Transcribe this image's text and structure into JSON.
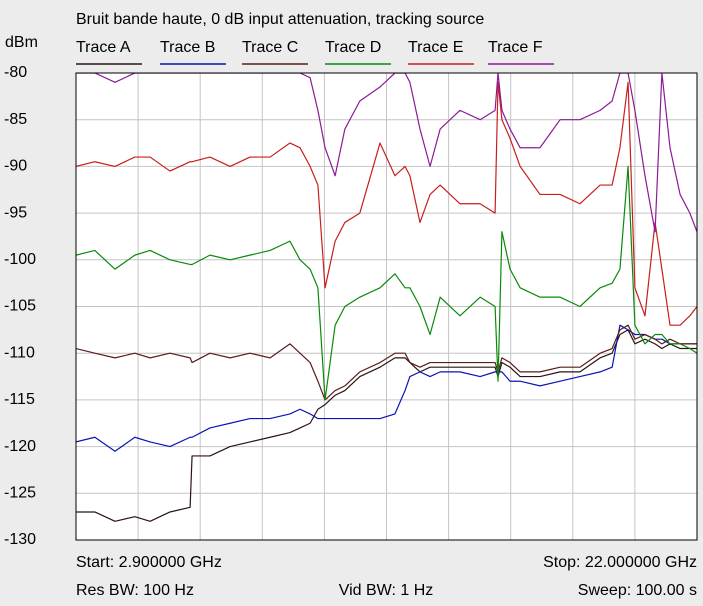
{
  "chart_data": {
    "type": "line",
    "title": "Bruit bande haute, 0 dB input attenuation, tracking source",
    "y_label": "dBm",
    "start_label": "Start: 2.900000 GHz",
    "stop_label": "Stop: 22.000000 GHz",
    "res_bw_label": "Res BW: 100 Hz",
    "vid_bw_label": "Vid BW: 1 Hz",
    "sweep_label": "Sweep: 100.00 s",
    "xlim": [
      2.9,
      22.0
    ],
    "xticks": [
      2.9,
      4.81,
      6.72,
      8.63,
      10.54,
      12.45,
      14.36,
      16.27,
      18.18,
      20.09,
      22.0
    ],
    "ylim": [
      -130,
      -80
    ],
    "yticks": [
      -80,
      -85,
      -90,
      -95,
      -100,
      -105,
      -110,
      -115,
      -120,
      -125,
      -130
    ],
    "grid": true,
    "x": [
      2.9,
      3.48,
      4.1,
      4.71,
      5.18,
      5.79,
      6.41,
      6.47,
      7.02,
      7.64,
      8.25,
      8.87,
      9.48,
      9.79,
      10.1,
      10.34,
      10.56,
      10.87,
      11.17,
      11.63,
      12.25,
      12.71,
      13.02,
      13.17,
      13.48,
      13.79,
      14.1,
      14.71,
      15.33,
      15.79,
      15.88,
      16.0,
      16.25,
      16.56,
      17.17,
      17.79,
      18.4,
      19.02,
      19.39,
      19.63,
      19.88,
      20.09,
      20.4,
      20.71,
      20.92,
      21.17,
      21.48,
      21.78,
      22.0
    ],
    "series": [
      {
        "name": "Trace A",
        "color": "#2a1414",
        "values": [
          -127,
          -127,
          -128,
          -127.5,
          -128,
          -127,
          -126.5,
          -121,
          -121,
          -120,
          -119.5,
          -119,
          -118.5,
          -118,
          -117.5,
          -116,
          -115.5,
          -114.5,
          -114,
          -112.5,
          -111.5,
          -110.5,
          -110.5,
          -111,
          -112,
          -111.5,
          -111.5,
          -111.5,
          -111.5,
          -111.5,
          -112.5,
          -111,
          -111.5,
          -112.5,
          -112.5,
          -112,
          -112,
          -110.5,
          -110,
          -108,
          -107.5,
          -109,
          -108.5,
          -109,
          -109.5,
          -109,
          -109.5,
          -109.5,
          -109.5
        ]
      },
      {
        "name": "Trace B",
        "color": "#0a14b4",
        "values": [
          -119.5,
          -119,
          -120.5,
          -119,
          -119.5,
          -120,
          -119,
          -119,
          -118,
          -117.5,
          -117,
          -117,
          -116.5,
          -116,
          -116.5,
          -117,
          -117,
          -117,
          -117,
          -117,
          -117,
          -116.5,
          -114,
          -112.5,
          -112,
          -112.5,
          -112,
          -112,
          -112.5,
          -112,
          -112,
          -112,
          -113,
          -113,
          -113.5,
          -113,
          -112.5,
          -112,
          -111.5,
          -107,
          -107.5,
          -108,
          -108,
          -108.5,
          -108.5,
          -109,
          -109,
          -109,
          -109
        ]
      },
      {
        "name": "Trace C",
        "color": "#5a1c1c",
        "values": [
          -109.5,
          -110,
          -110.5,
          -110,
          -110.5,
          -110,
          -110.5,
          -111,
          -110,
          -110.5,
          -110,
          -110.5,
          -109,
          -110,
          -111,
          -113,
          -115,
          -114,
          -113.5,
          -112,
          -111,
          -110,
          -110,
          -111,
          -111.5,
          -111,
          -111,
          -111,
          -111,
          -111,
          -112,
          -110.5,
          -111,
          -112,
          -112,
          -111.5,
          -111.5,
          -110,
          -109.5,
          -107.5,
          -107,
          -108.5,
          -108,
          -108.5,
          -109,
          -108.5,
          -109,
          -109,
          -109
        ]
      },
      {
        "name": "Trace D",
        "color": "#0a8a0a",
        "values": [
          -99.5,
          -99,
          -101,
          -99.5,
          -99,
          -100,
          -100.5,
          -100.5,
          -99.5,
          -100,
          -99.5,
          -99,
          -98,
          -100,
          -101,
          -103,
          -115,
          -107,
          -105,
          -104,
          -103,
          -101.5,
          -103,
          -103,
          -105,
          -108,
          -104,
          -106,
          -104,
          -105,
          -113,
          -97,
          -101,
          -103,
          -104,
          -104,
          -105,
          -103,
          -102.5,
          -101,
          -90,
          -107,
          -109,
          -108,
          -108,
          -109,
          -109,
          -109.5,
          -110
        ]
      },
      {
        "name": "Trace E",
        "color": "#c81e1e",
        "values": [
          -90,
          -89.5,
          -90,
          -89,
          -89,
          -90.5,
          -89.5,
          -89.5,
          -89,
          -90,
          -89,
          -89,
          -87.5,
          -88,
          -90,
          -92,
          -103,
          -98,
          -96,
          -95,
          -87.5,
          -91,
          -90,
          -91,
          -96,
          -93,
          -92,
          -94,
          -94,
          -95,
          -81,
          -85,
          -87,
          -90,
          -93,
          -93,
          -94,
          -92,
          -92,
          -88,
          -81,
          -103,
          -106,
          -96,
          -101,
          -107,
          -107,
          -106,
          -105
        ]
      },
      {
        "name": "Trace F",
        "color": "#8c1a96",
        "values": [
          -80,
          -80,
          -81,
          -80,
          -80,
          -80,
          -80,
          -80,
          -80,
          -80,
          -80,
          -80,
          -80,
          -80,
          -80.5,
          -84,
          -88,
          -91,
          -86,
          -83,
          -81.5,
          -80,
          -80,
          -81,
          -86,
          -90,
          -86,
          -84,
          -85,
          -84,
          -80,
          -84,
          -86,
          -88,
          -88,
          -85,
          -85,
          -84,
          -83,
          -80,
          -80,
          -84,
          -91,
          -97,
          -80,
          -88,
          -93,
          -95,
          -97
        ]
      }
    ]
  }
}
